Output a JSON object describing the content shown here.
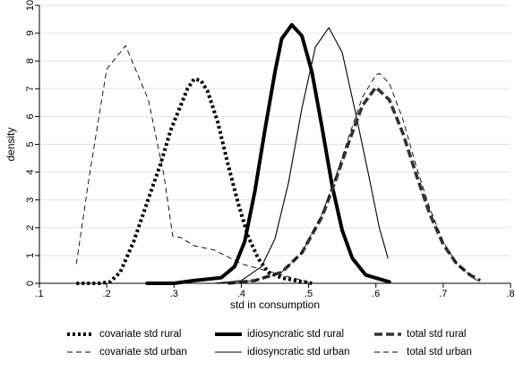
{
  "chart_data": {
    "type": "line",
    "xlabel": "std in consumption",
    "ylabel": "density",
    "xlim": [
      0.1,
      0.8
    ],
    "ylim": [
      0,
      10
    ],
    "xticks": [
      0.1,
      0.2,
      0.3,
      0.4,
      0.5,
      0.6,
      0.7,
      0.8
    ],
    "xtick_labels": [
      ".1",
      ".2",
      ".3",
      ".4",
      ".5",
      ".6",
      ".7",
      ".8"
    ],
    "yticks": [
      0,
      1,
      2,
      3,
      4,
      5,
      6,
      7,
      8,
      9,
      10
    ],
    "ytick_labels": [
      "0",
      "1",
      "2",
      "3",
      "4",
      "5",
      "6",
      "7",
      "8",
      "9",
      "10"
    ],
    "grid": "horizontal",
    "legend_position": "bottom",
    "series": [
      {
        "name": "covariate std rural",
        "style": "dotted-thick",
        "color": "#000000",
        "points": [
          [
            0.155,
            0.0
          ],
          [
            0.19,
            0.0
          ],
          [
            0.205,
            0.05
          ],
          [
            0.22,
            0.4
          ],
          [
            0.24,
            1.5
          ],
          [
            0.26,
            2.9
          ],
          [
            0.28,
            4.3
          ],
          [
            0.295,
            5.5
          ],
          [
            0.31,
            6.4
          ],
          [
            0.32,
            7.0
          ],
          [
            0.33,
            7.35
          ],
          [
            0.34,
            7.3
          ],
          [
            0.35,
            6.9
          ],
          [
            0.365,
            5.8
          ],
          [
            0.38,
            4.3
          ],
          [
            0.395,
            2.9
          ],
          [
            0.41,
            1.7
          ],
          [
            0.425,
            0.9
          ],
          [
            0.44,
            0.4
          ],
          [
            0.46,
            0.2
          ],
          [
            0.48,
            0.1
          ],
          [
            0.505,
            0.0
          ]
        ]
      },
      {
        "name": "covariate std urban",
        "style": "dashed-thin",
        "color": "#000000",
        "points": [
          [
            0.155,
            0.7
          ],
          [
            0.175,
            4.0
          ],
          [
            0.2,
            7.7
          ],
          [
            0.228,
            8.55
          ],
          [
            0.262,
            6.6
          ],
          [
            0.285,
            3.9
          ],
          [
            0.298,
            1.7
          ],
          [
            0.31,
            1.65
          ],
          [
            0.33,
            1.35
          ],
          [
            0.36,
            1.2
          ],
          [
            0.4,
            0.7
          ],
          [
            0.43,
            0.5
          ],
          [
            0.46,
            0.3
          ],
          [
            0.5,
            0.05
          ]
        ]
      },
      {
        "name": "idiosyncratic std rural",
        "style": "solid-thick",
        "color": "#000000",
        "points": [
          [
            0.26,
            0.0
          ],
          [
            0.3,
            0.0
          ],
          [
            0.33,
            0.1
          ],
          [
            0.37,
            0.2
          ],
          [
            0.39,
            0.6
          ],
          [
            0.405,
            1.5
          ],
          [
            0.42,
            3.3
          ],
          [
            0.435,
            5.5
          ],
          [
            0.45,
            7.6
          ],
          [
            0.46,
            8.8
          ],
          [
            0.475,
            9.3
          ],
          [
            0.49,
            8.9
          ],
          [
            0.505,
            7.6
          ],
          [
            0.52,
            5.6
          ],
          [
            0.535,
            3.5
          ],
          [
            0.55,
            1.9
          ],
          [
            0.565,
            0.9
          ],
          [
            0.585,
            0.3
          ],
          [
            0.62,
            0.05
          ]
        ]
      },
      {
        "name": "idiosyncratic std urban",
        "style": "solid-thin",
        "color": "#000000",
        "points": [
          [
            0.36,
            0.0
          ],
          [
            0.4,
            0.1
          ],
          [
            0.43,
            0.6
          ],
          [
            0.45,
            1.6
          ],
          [
            0.47,
            3.6
          ],
          [
            0.49,
            6.3
          ],
          [
            0.51,
            8.5
          ],
          [
            0.53,
            9.2
          ],
          [
            0.55,
            8.3
          ],
          [
            0.57,
            6.1
          ],
          [
            0.59,
            3.8
          ],
          [
            0.605,
            2.0
          ],
          [
            0.618,
            0.9
          ]
        ]
      },
      {
        "name": "total std rural",
        "style": "dashed-thick",
        "color": "#333333",
        "points": [
          [
            0.38,
            0.0
          ],
          [
            0.42,
            0.1
          ],
          [
            0.46,
            0.4
          ],
          [
            0.49,
            1.1
          ],
          [
            0.52,
            2.4
          ],
          [
            0.54,
            3.7
          ],
          [
            0.56,
            5.1
          ],
          [
            0.58,
            6.4
          ],
          [
            0.6,
            7.05
          ],
          [
            0.62,
            6.6
          ],
          [
            0.64,
            5.4
          ],
          [
            0.66,
            3.9
          ],
          [
            0.68,
            2.5
          ],
          [
            0.7,
            1.4
          ],
          [
            0.72,
            0.7
          ],
          [
            0.74,
            0.3
          ],
          [
            0.755,
            0.1
          ]
        ]
      },
      {
        "name": "total std urban",
        "style": "dashed-thin",
        "color": "#000000",
        "points": [
          [
            0.38,
            0.0
          ],
          [
            0.42,
            0.1
          ],
          [
            0.46,
            0.4
          ],
          [
            0.49,
            1.1
          ],
          [
            0.52,
            2.5
          ],
          [
            0.54,
            3.8
          ],
          [
            0.56,
            5.3
          ],
          [
            0.58,
            6.7
          ],
          [
            0.6,
            7.5
          ],
          [
            0.605,
            7.55
          ],
          [
            0.62,
            7.2
          ],
          [
            0.64,
            5.9
          ],
          [
            0.66,
            4.2
          ],
          [
            0.68,
            2.7
          ],
          [
            0.7,
            1.5
          ],
          [
            0.72,
            0.7
          ],
          [
            0.74,
            0.3
          ],
          [
            0.75,
            0.1
          ]
        ]
      }
    ]
  }
}
